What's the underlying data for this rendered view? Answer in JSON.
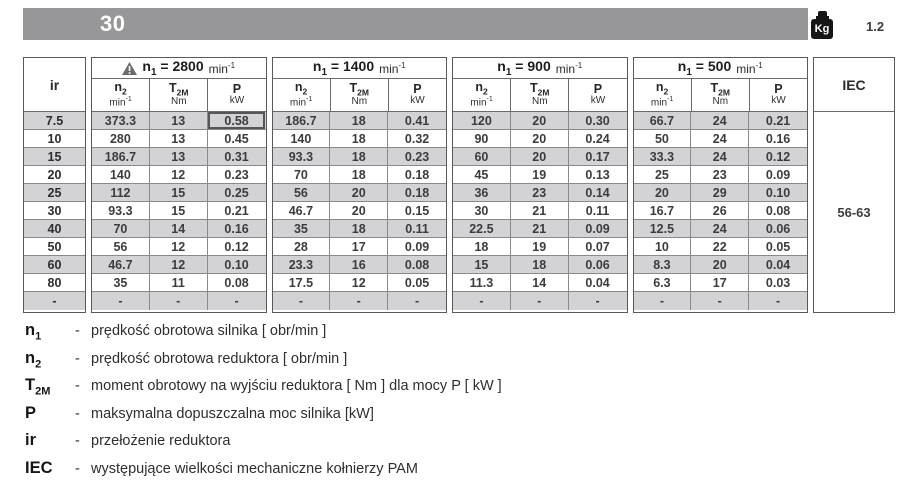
{
  "header_bar": {
    "model": "30",
    "kg_icon_label": "Kg",
    "weight": "1.2",
    "bar_color": "#97979a"
  },
  "table": {
    "ir_header": "ir",
    "iec_header": "IEC",
    "iec_value": "56-63",
    "sub": {
      "n2_base": "n",
      "n2_sub": "2",
      "n2_unit": "min",
      "n2_unit_sup": "-1",
      "t2m_base": "T",
      "t2m_sub": "2M",
      "t2m_unit": "Nm",
      "p_base": "P",
      "p_unit": "kW"
    },
    "groups": [
      {
        "sym": "n",
        "sym_sub": "1",
        "eq": "=",
        "speed": "2800",
        "unit": "min",
        "unit_sup": "-1",
        "warning": true
      },
      {
        "sym": "n",
        "sym_sub": "1",
        "eq": "=",
        "speed": "1400",
        "unit": "min",
        "unit_sup": "-1",
        "warning": false
      },
      {
        "sym": "n",
        "sym_sub": "1",
        "eq": "=",
        "speed": "900",
        "unit": "min",
        "unit_sup": "-1",
        "warning": false
      },
      {
        "sym": "n",
        "sym_sub": "1",
        "eq": "=",
        "speed": "500",
        "unit": "min",
        "unit_sup": "-1",
        "warning": false
      }
    ],
    "rows": [
      {
        "ir": "7.5",
        "g1": [
          "373.3",
          "13",
          "0.58"
        ],
        "g2": [
          "186.7",
          "18",
          "0.41"
        ],
        "g3": [
          "120",
          "20",
          "0.30"
        ],
        "g4": [
          "66.7",
          "24",
          "0.21"
        ]
      },
      {
        "ir": "10",
        "g1": [
          "280",
          "13",
          "0.45"
        ],
        "g2": [
          "140",
          "18",
          "0.32"
        ],
        "g3": [
          "90",
          "20",
          "0.24"
        ],
        "g4": [
          "50",
          "24",
          "0.16"
        ]
      },
      {
        "ir": "15",
        "g1": [
          "186.7",
          "13",
          "0.31"
        ],
        "g2": [
          "93.3",
          "18",
          "0.23"
        ],
        "g3": [
          "60",
          "20",
          "0.17"
        ],
        "g4": [
          "33.3",
          "24",
          "0.12"
        ]
      },
      {
        "ir": "20",
        "g1": [
          "140",
          "12",
          "0.23"
        ],
        "g2": [
          "70",
          "18",
          "0.18"
        ],
        "g3": [
          "45",
          "19",
          "0.13"
        ],
        "g4": [
          "25",
          "23",
          "0.09"
        ]
      },
      {
        "ir": "25",
        "g1": [
          "112",
          "15",
          "0.25"
        ],
        "g2": [
          "56",
          "20",
          "0.18"
        ],
        "g3": [
          "36",
          "23",
          "0.14"
        ],
        "g4": [
          "20",
          "29",
          "0.10"
        ]
      },
      {
        "ir": "30",
        "g1": [
          "93.3",
          "15",
          "0.21"
        ],
        "g2": [
          "46.7",
          "20",
          "0.15"
        ],
        "g3": [
          "30",
          "21",
          "0.11"
        ],
        "g4": [
          "16.7",
          "26",
          "0.08"
        ]
      },
      {
        "ir": "40",
        "g1": [
          "70",
          "14",
          "0.16"
        ],
        "g2": [
          "35",
          "18",
          "0.11"
        ],
        "g3": [
          "22.5",
          "21",
          "0.09"
        ],
        "g4": [
          "12.5",
          "24",
          "0.06"
        ]
      },
      {
        "ir": "50",
        "g1": [
          "56",
          "12",
          "0.12"
        ],
        "g2": [
          "28",
          "17",
          "0.09"
        ],
        "g3": [
          "18",
          "19",
          "0.07"
        ],
        "g4": [
          "10",
          "22",
          "0.05"
        ]
      },
      {
        "ir": "60",
        "g1": [
          "46.7",
          "12",
          "0.10"
        ],
        "g2": [
          "23.3",
          "16",
          "0.08"
        ],
        "g3": [
          "15",
          "18",
          "0.06"
        ],
        "g4": [
          "8.3",
          "20",
          "0.04"
        ]
      },
      {
        "ir": "80",
        "g1": [
          "35",
          "11",
          "0.08"
        ],
        "g2": [
          "17.5",
          "12",
          "0.05"
        ],
        "g3": [
          "11.3",
          "14",
          "0.04"
        ],
        "g4": [
          "6.3",
          "17",
          "0.03"
        ]
      },
      {
        "ir": "-",
        "g1": [
          "-",
          "-",
          "-"
        ],
        "g2": [
          "-",
          "-",
          "-"
        ],
        "g3": [
          "-",
          "-",
          "-"
        ],
        "g4": [
          "-",
          "-",
          "-"
        ]
      }
    ],
    "highlight": {
      "row": 0,
      "group": 0,
      "col": 2,
      "note": "P value 0.58 outlined"
    }
  },
  "legend": [
    {
      "sym_base": "n",
      "sym_sub": "1",
      "dash": "-",
      "text": "prędkość obrotowa silnika [ obr/min ]"
    },
    {
      "sym_base": "n",
      "sym_sub": "2",
      "dash": "-",
      "text": "prędkość obrotowa reduktora [ obr/min ]"
    },
    {
      "sym_base": "T",
      "sym_sub": "2M",
      "dash": "-",
      "text": "moment obrotowy na wyjściu reduktora [ Nm ] dla mocy P  [ kW ]"
    },
    {
      "sym_base": "P",
      "sym_sub": "",
      "dash": "-",
      "text": "maksymalna dopuszczalna moc silnika [kW]"
    },
    {
      "sym_base": "ir",
      "sym_sub": "",
      "dash": "-",
      "text": "przełożenie reduktora"
    },
    {
      "sym_base": "IEC",
      "sym_sub": "",
      "dash": "-",
      "text": "występujące wielkości mechaniczne kołnierzy PAM"
    }
  ]
}
